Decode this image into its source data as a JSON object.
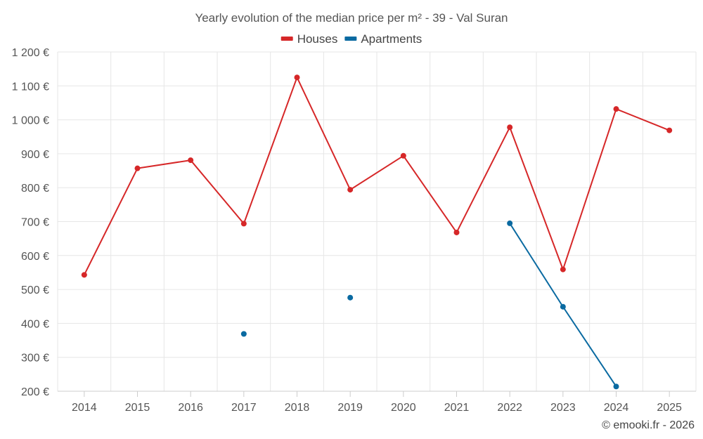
{
  "chart_data": {
    "type": "line",
    "title": "Yearly evolution of the median price per m² - 39 - Val Suran",
    "categories": [
      "2014",
      "2015",
      "2016",
      "2017",
      "2018",
      "2019",
      "2020",
      "2021",
      "2022",
      "2023",
      "2024",
      "2025"
    ],
    "y_ticks": [
      200,
      300,
      400,
      500,
      600,
      700,
      800,
      900,
      1000,
      1100,
      1200
    ],
    "y_tick_labels": [
      "200 €",
      "300 €",
      "400 €",
      "500 €",
      "600 €",
      "700 €",
      "800 €",
      "900 €",
      "1 000 €",
      "1 100 €",
      "1 200 €"
    ],
    "ylim": [
      200,
      1200
    ],
    "grid": true,
    "legend_position": "top-center",
    "series": [
      {
        "name": "Houses",
        "color": "#d62728",
        "values": [
          543,
          857,
          881,
          694,
          1125,
          794,
          894,
          668,
          978,
          559,
          1032,
          969
        ]
      },
      {
        "name": "Apartments",
        "color": "#0a6aa1",
        "values": [
          null,
          null,
          null,
          369,
          null,
          476,
          null,
          null,
          695,
          449,
          214,
          null
        ]
      }
    ]
  },
  "credit": "© emooki.fr - 2026"
}
